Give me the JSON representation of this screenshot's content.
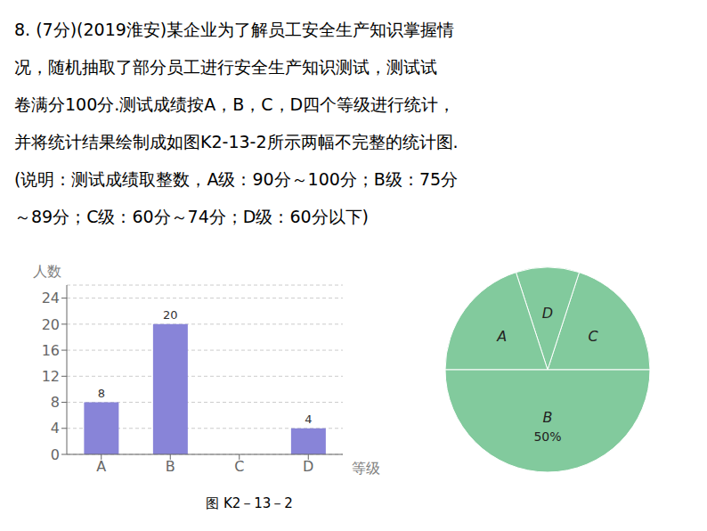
{
  "chart_data": [
    {
      "type": "bar",
      "title": "8. (7分)(2019淮安)某企业为了解员工安全生产知识掌握情\n况，随机抽取了部分员工进行安全生产知识测试，测试试\n卷满分100分.测试成绩按A，B，C，D四个等级进行统计，\n并将统计结果绘制成如图K2-13-2所示两幅不完整的统计图.\n(说明：测试成绩取整数，A级：90分～100分；B级：75分\n～89分；C级：60分～74分；D级：60分以下)",
      "x_label": "等级",
      "y_label": "人数",
      "categories": [
        "A",
        "B",
        "C",
        "D"
      ],
      "values": [
        8,
        20,
        null,
        4
      ],
      "color": "#8884d8",
      "ylim": [
        0,
        26
      ],
      "yticks": [
        0,
        4,
        8,
        12,
        16,
        20,
        24
      ],
      "grid": true,
      "data_labels": true,
      "annotations": [
        "图 K2－13－2"
      ]
    },
    {
      "type": "pie",
      "categories": [
        "C",
        "D",
        "A",
        "B"
      ],
      "values": [
        20,
        10,
        20,
        50
      ],
      "value_labels": [
        null,
        null,
        null,
        "50%"
      ],
      "data_labels": true,
      "color": "#82ca9d"
    }
  ]
}
